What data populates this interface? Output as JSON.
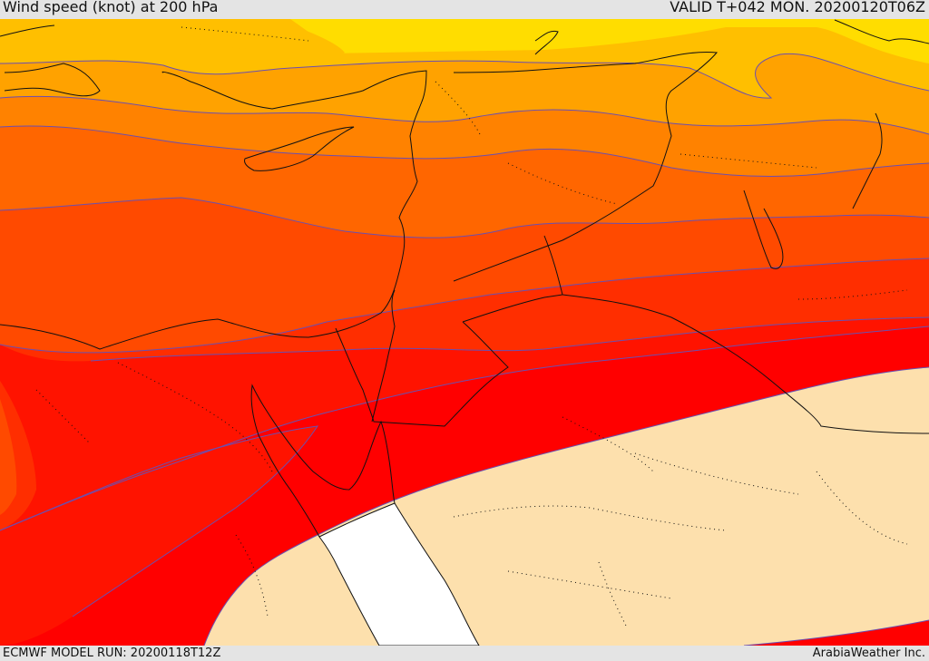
{
  "header": {
    "title": "Wind speed (knot) at 200 hPa",
    "valid": "VALID T+042 MON. 20200120T06Z"
  },
  "footer": {
    "model_run": "ECMWF MODEL RUN: 20200118T12Z",
    "credit": "ArabiaWeather Inc."
  },
  "colors": {
    "band_yellow": "#ffdd00",
    "band_light_orange": "#ffbf00",
    "band_orange": "#ffa200",
    "band_mid_orange": "#ff8200",
    "band_dark_orange": "#ff6600",
    "band_red_orange": "#ff4a00",
    "band_orange_red": "#ff2e00",
    "band_red": "#ff1300",
    "band_pure_red": "#ff0000",
    "low_wind": "#fde0ad",
    "sea": "#ffffff",
    "contour": "#6b4fb0",
    "border": "#111111"
  }
}
